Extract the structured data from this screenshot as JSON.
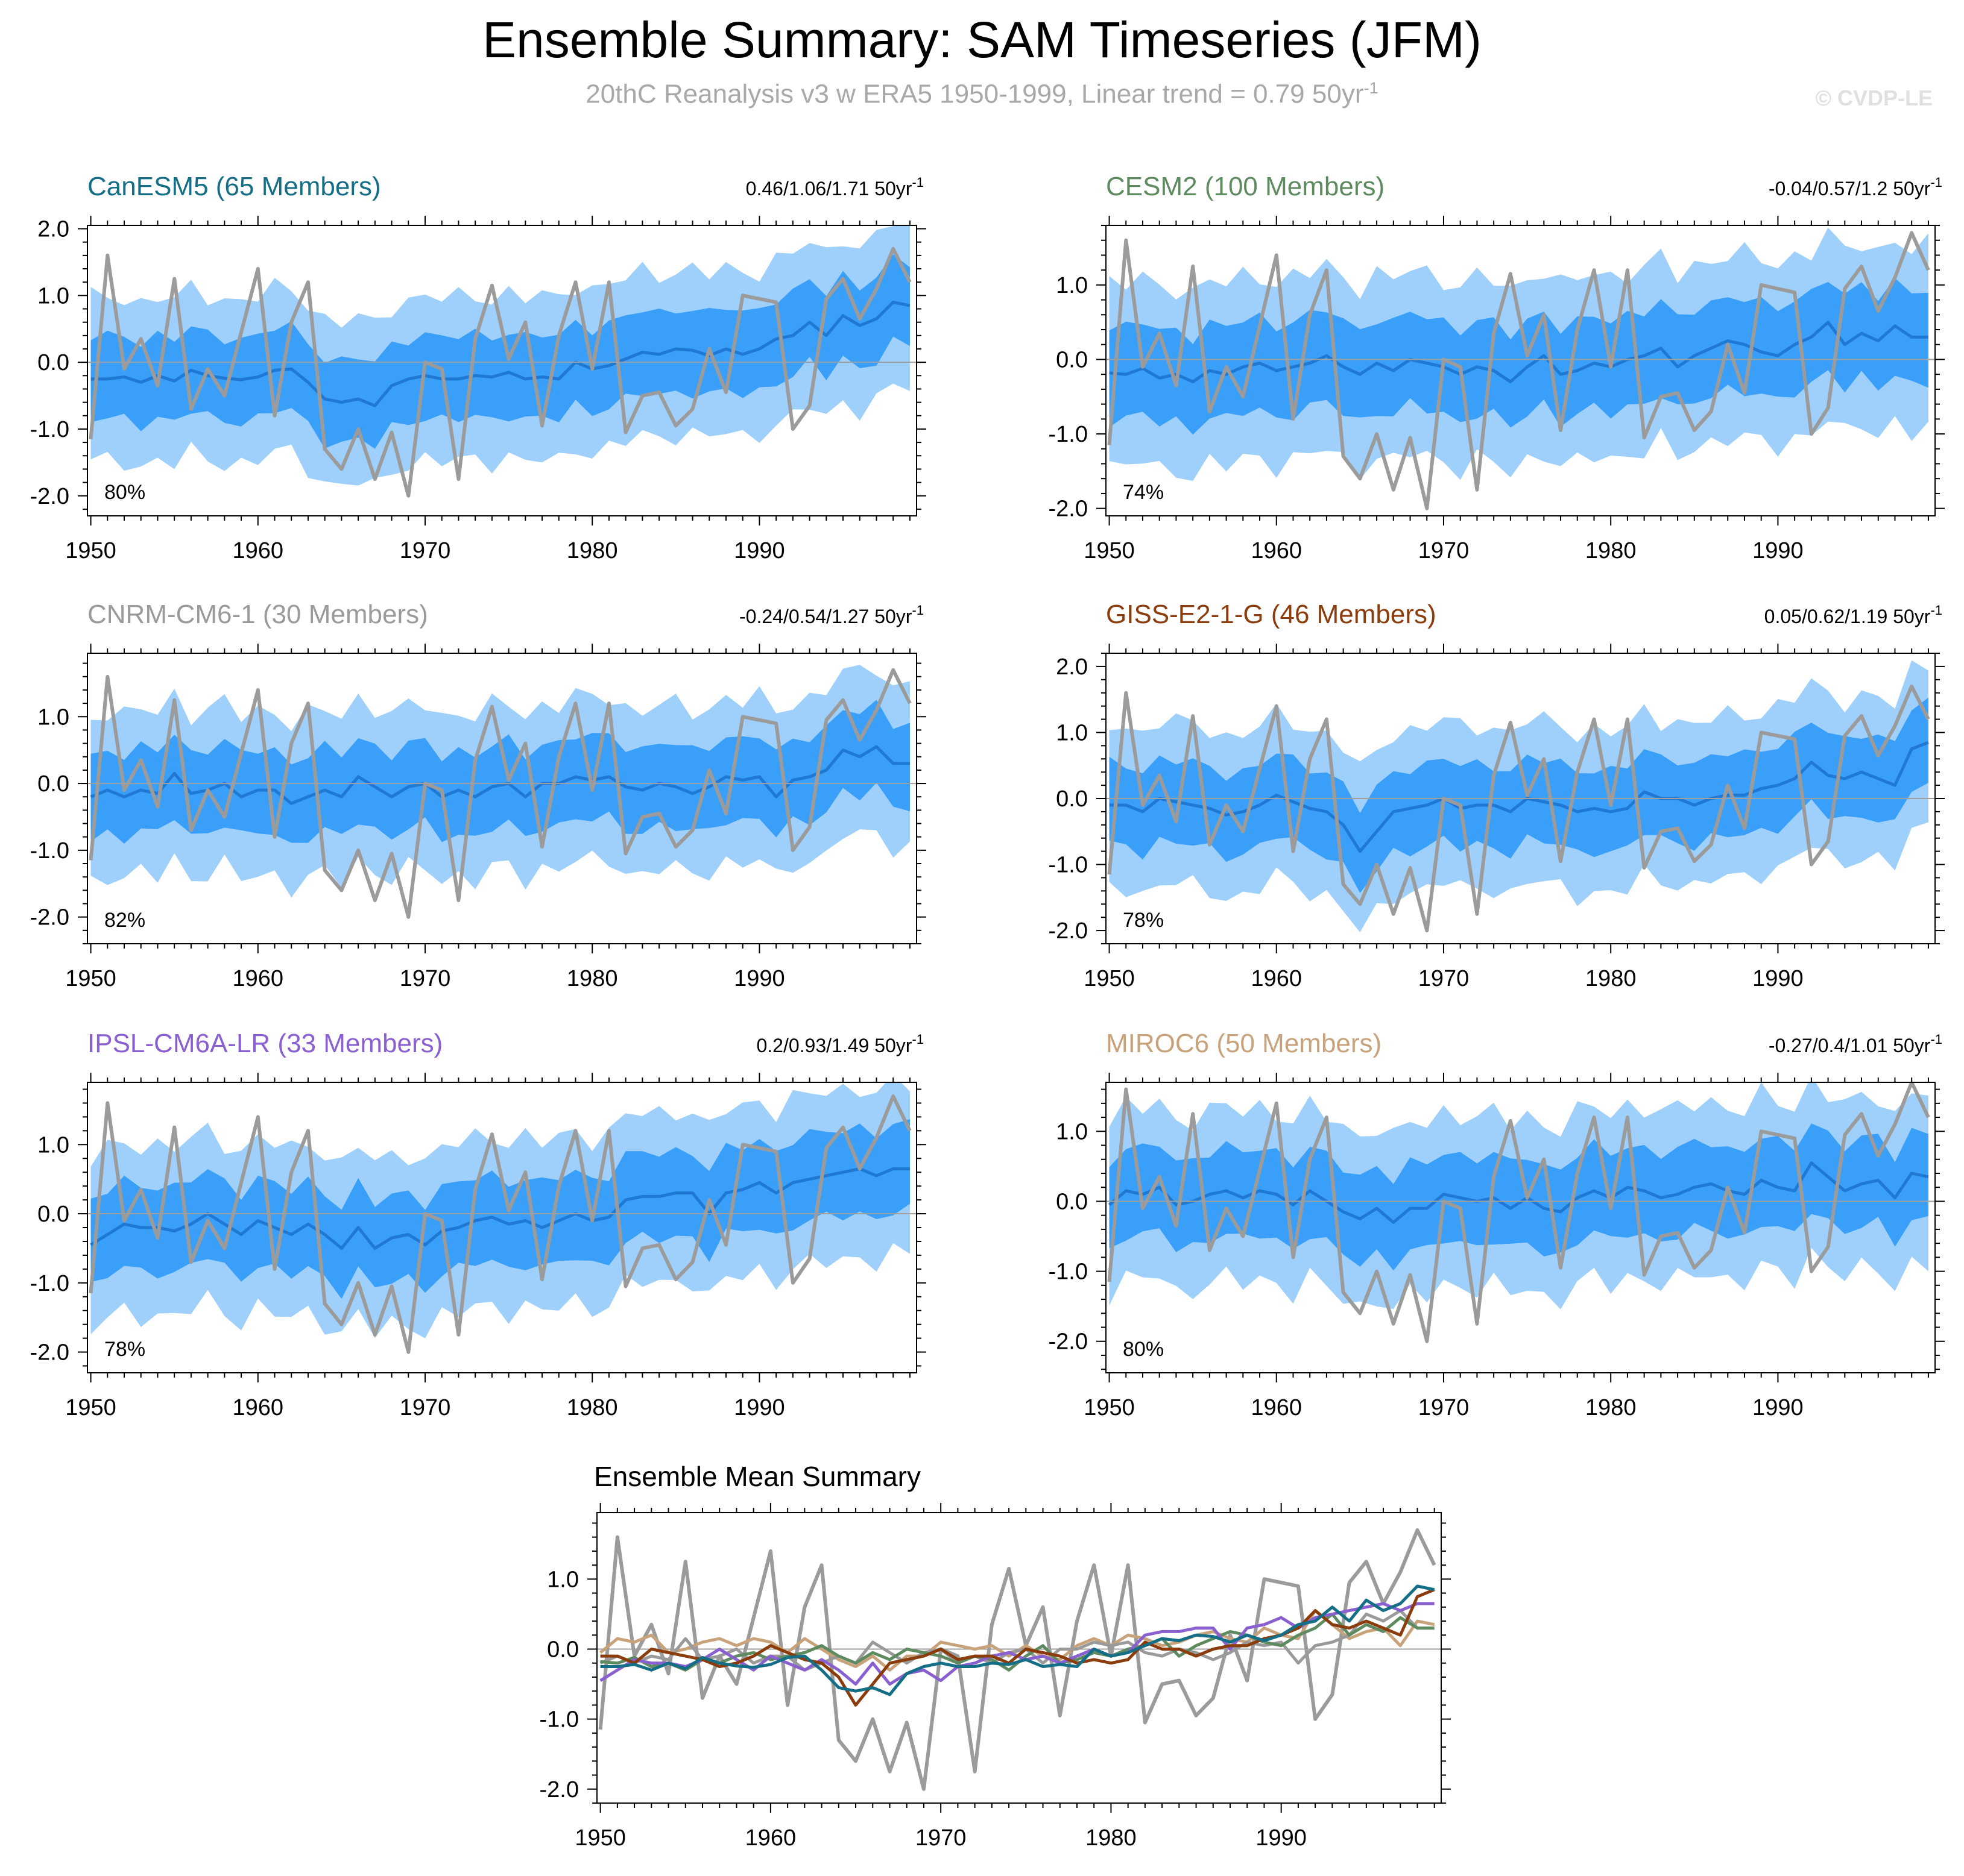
{
  "header": {
    "title": "Ensemble Summary: SAM Timeseries (JFM)",
    "subtitle": "20thC Reanalysis v3 w ERA5 1950-1999, Linear trend = 0.79 50yr",
    "subtitle_sup": "-1",
    "copyright": "© CVDP-LE"
  },
  "colors": {
    "obs_line": "#9b9b9b",
    "band_outer": "#9fd0fc",
    "band_inner": "#3a9ff9",
    "ens_mean": "#1f78d1",
    "zero_line": "#a0a0a0",
    "CanESM5": "#146e86",
    "CESM2": "#5e8a60",
    "CNRM-CM6-1": "#9a9a9a",
    "GISS-E2-1-G": "#8a3c0c",
    "IPSL-CM6A-LR": "#8a5fcf",
    "MIROC6": "#c8a27a"
  },
  "chart_data": {
    "type": "line",
    "x": [
      1950,
      1951,
      1952,
      1953,
      1954,
      1955,
      1956,
      1957,
      1958,
      1959,
      1960,
      1961,
      1962,
      1963,
      1964,
      1965,
      1966,
      1967,
      1968,
      1969,
      1970,
      1971,
      1972,
      1973,
      1974,
      1975,
      1976,
      1977,
      1978,
      1979,
      1980,
      1981,
      1982,
      1983,
      1984,
      1985,
      1986,
      1987,
      1988,
      1989,
      1990,
      1991,
      1992,
      1993,
      1994,
      1995,
      1996,
      1997,
      1998,
      1999
    ],
    "xticks": [
      "1950",
      "1960",
      "1970",
      "1980",
      "1990"
    ],
    "observed": [
      -1.15,
      1.6,
      -0.1,
      0.35,
      -0.35,
      1.25,
      -0.7,
      -0.1,
      -0.5,
      0.45,
      1.4,
      -0.8,
      0.6,
      1.2,
      -1.3,
      -1.6,
      -1.0,
      -1.75,
      -1.05,
      -2.0,
      0.0,
      -0.1,
      -1.75,
      0.35,
      1.15,
      0.05,
      0.6,
      -0.95,
      0.4,
      1.2,
      -0.1,
      1.2,
      -1.05,
      -0.5,
      -0.45,
      -0.95,
      -0.7,
      0.2,
      -0.45,
      1.0,
      0.95,
      0.9,
      -1.0,
      -0.65,
      0.95,
      1.25,
      0.65,
      1.1,
      1.7,
      1.2
    ],
    "panels": [
      {
        "name": "CanESM5",
        "members": "CanESM5 (65 Members)",
        "trend": "0.46/1.06/1.71 50yr",
        "trend_sup": "-1",
        "pct": "80%",
        "ylim": [
          -2.3,
          2.05
        ],
        "yticks": [
          "2.0",
          "1.0",
          "0.0",
          "-1.0",
          "-2.0"
        ],
        "ytick_values": [
          2,
          1,
          0,
          -1,
          -2
        ],
        "ens_mean": [
          -0.25,
          -0.25,
          -0.22,
          -0.3,
          -0.2,
          -0.28,
          -0.12,
          -0.2,
          -0.24,
          -0.26,
          -0.22,
          -0.12,
          -0.1,
          -0.3,
          -0.55,
          -0.6,
          -0.55,
          -0.65,
          -0.35,
          -0.25,
          -0.2,
          -0.25,
          -0.25,
          -0.2,
          -0.22,
          -0.15,
          -0.25,
          -0.22,
          -0.25,
          0.0,
          -0.1,
          -0.05,
          0.05,
          0.15,
          0.12,
          0.2,
          0.18,
          0.1,
          0.2,
          0.12,
          0.2,
          0.35,
          0.4,
          0.6,
          0.4,
          0.7,
          0.55,
          0.65,
          0.9,
          0.85
        ]
      },
      {
        "name": "CESM2",
        "members": "CESM2 (100 Members)",
        "trend": "-0.04/0.57/1.2 50yr",
        "trend_sup": "-1",
        "pct": "74%",
        "ylim": [
          -2.1,
          1.8
        ],
        "yticks": [
          "1.0",
          "0.0",
          "-1.0",
          "-2.0"
        ],
        "ytick_values": [
          1,
          0,
          -1,
          -2
        ],
        "ens_mean": [
          -0.18,
          -0.2,
          -0.12,
          -0.25,
          -0.2,
          -0.3,
          -0.15,
          -0.2,
          -0.1,
          -0.05,
          -0.15,
          -0.1,
          -0.05,
          0.05,
          -0.1,
          -0.2,
          -0.05,
          -0.15,
          0.0,
          -0.05,
          -0.1,
          -0.2,
          -0.1,
          -0.15,
          -0.3,
          -0.1,
          0.05,
          -0.2,
          -0.15,
          -0.05,
          -0.1,
          0.0,
          0.05,
          0.15,
          -0.1,
          0.05,
          0.15,
          0.25,
          0.2,
          0.1,
          0.05,
          0.2,
          0.3,
          0.5,
          0.2,
          0.35,
          0.25,
          0.45,
          0.3,
          0.3
        ]
      },
      {
        "name": "CNRM-CM6-1",
        "members": "CNRM-CM6-1 (30 Members)",
        "trend": "-0.24/0.54/1.27 50yr",
        "trend_sup": "-1",
        "pct": "82%",
        "ylim": [
          -2.4,
          1.95
        ],
        "yticks": [
          "1.0",
          "0.0",
          "-1.0",
          "-2.0"
        ],
        "ytick_values": [
          1,
          0,
          -1,
          -2
        ],
        "ens_mean": [
          -0.2,
          -0.1,
          -0.2,
          -0.1,
          -0.15,
          0.15,
          -0.15,
          -0.1,
          0.0,
          -0.2,
          -0.1,
          -0.1,
          -0.3,
          -0.2,
          -0.1,
          -0.2,
          0.1,
          -0.05,
          -0.2,
          -0.05,
          0.0,
          -0.2,
          -0.1,
          -0.2,
          -0.05,
          0.0,
          -0.2,
          0.0,
          0.0,
          0.1,
          0.05,
          0.1,
          -0.05,
          -0.1,
          0.0,
          -0.05,
          -0.15,
          -0.05,
          0.1,
          0.05,
          0.1,
          -0.2,
          0.05,
          0.1,
          0.2,
          0.5,
          0.4,
          0.55,
          0.3,
          0.3
        ]
      },
      {
        "name": "GISS-E2-1-G",
        "members": "GISS-E2-1-G (46 Members)",
        "trend": "0.05/0.62/1.19 50yr",
        "trend_sup": "-1",
        "pct": "78%",
        "ylim": [
          -2.2,
          2.2
        ],
        "yticks": [
          "2.0",
          "1.0",
          "0.0",
          "-1.0",
          "-2.0"
        ],
        "ytick_values": [
          2,
          1,
          0,
          -1,
          -2
        ],
        "ens_mean": [
          -0.1,
          -0.1,
          -0.2,
          0.0,
          -0.05,
          -0.1,
          -0.15,
          -0.25,
          -0.2,
          -0.1,
          0.05,
          -0.05,
          -0.15,
          -0.2,
          -0.4,
          -0.8,
          -0.5,
          -0.2,
          -0.15,
          -0.1,
          0.0,
          -0.15,
          -0.1,
          -0.1,
          -0.2,
          0.0,
          -0.05,
          -0.1,
          -0.2,
          -0.15,
          -0.2,
          -0.15,
          0.1,
          0.0,
          0.0,
          -0.1,
          0.0,
          0.05,
          0.05,
          0.15,
          0.2,
          0.3,
          0.55,
          0.35,
          0.3,
          0.4,
          0.3,
          0.2,
          0.75,
          0.85
        ]
      },
      {
        "name": "IPSL-CM6A-LR",
        "members": "IPSL-CM6A-LR (33 Members)",
        "trend": "0.2/0.93/1.49 50yr",
        "trend_sup": "-1",
        "pct": "78%",
        "ylim": [
          -2.3,
          1.9
        ],
        "yticks": [
          "1.0",
          "0.0",
          "-1.0",
          "-2.0"
        ],
        "ytick_values": [
          1,
          0,
          -1,
          -2
        ],
        "ens_mean": [
          -0.45,
          -0.3,
          -0.15,
          -0.2,
          -0.2,
          -0.25,
          -0.15,
          0.0,
          -0.15,
          -0.3,
          -0.1,
          -0.2,
          -0.3,
          -0.15,
          -0.3,
          -0.5,
          -0.2,
          -0.5,
          -0.35,
          -0.3,
          -0.45,
          -0.25,
          -0.2,
          -0.1,
          -0.05,
          -0.15,
          -0.1,
          -0.2,
          -0.1,
          0.0,
          -0.1,
          -0.05,
          0.2,
          0.25,
          0.25,
          0.3,
          0.3,
          0.0,
          0.3,
          0.35,
          0.45,
          0.3,
          0.45,
          0.5,
          0.55,
          0.6,
          0.65,
          0.55,
          0.65,
          0.65
        ]
      },
      {
        "name": "MIROC6",
        "members": "MIROC6 (50 Members)",
        "trend": "-0.27/0.4/1.01 50yr",
        "trend_sup": "-1",
        "pct": "80%",
        "ylim": [
          -2.45,
          1.7
        ],
        "yticks": [
          "1.0",
          "0.0",
          "-1.0",
          "-2.0"
        ],
        "ytick_values": [
          1,
          0,
          -1,
          -2
        ],
        "ens_mean": [
          -0.05,
          0.15,
          0.1,
          0.2,
          -0.05,
          0.0,
          0.1,
          0.15,
          0.05,
          0.15,
          0.1,
          -0.05,
          0.15,
          0.0,
          -0.15,
          -0.25,
          -0.1,
          -0.3,
          -0.1,
          -0.1,
          0.1,
          0.05,
          0.0,
          0.05,
          -0.1,
          0.05,
          -0.1,
          -0.15,
          0.05,
          0.15,
          0.05,
          0.2,
          0.15,
          0.05,
          0.1,
          0.2,
          0.25,
          0.15,
          0.1,
          0.3,
          0.2,
          0.15,
          0.55,
          0.35,
          0.15,
          0.25,
          0.3,
          0.05,
          0.4,
          0.35
        ]
      }
    ],
    "summary": {
      "title": "Ensemble Mean Summary",
      "ylim": [
        -2.2,
        1.95
      ],
      "yticks": [
        "1.0",
        "0.0",
        "-1.0",
        "-2.0"
      ],
      "ytick_values": [
        1,
        0,
        -1,
        -2
      ]
    }
  }
}
